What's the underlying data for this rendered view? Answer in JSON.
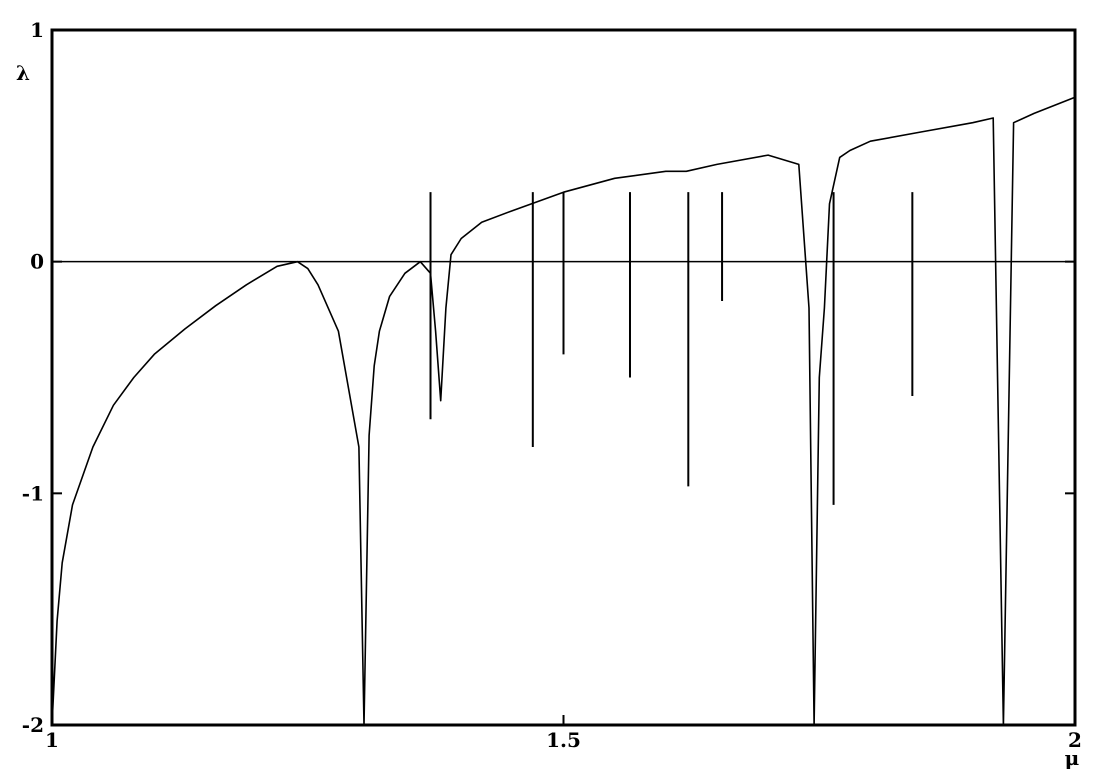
{
  "chart_data": {
    "type": "line",
    "title": "",
    "xlabel": "μ",
    "ylabel": "λ",
    "xlim": [
      1,
      2
    ],
    "ylim": [
      -2,
      1
    ],
    "x_ticks": [
      {
        "value": 1,
        "label": "1"
      },
      {
        "value": 1.5,
        "label": "1.5"
      },
      {
        "value": 2,
        "label": "2"
      }
    ],
    "y_ticks": [
      {
        "value": 1,
        "label": "1"
      },
      {
        "value": 0,
        "label": "0"
      },
      {
        "value": -1,
        "label": "-1"
      },
      {
        "value": -2,
        "label": "-2"
      }
    ],
    "reference_lines": [
      {
        "axis": "y",
        "value": 0
      }
    ],
    "grid": false,
    "legend": "none",
    "colors": {
      "line": "#000000",
      "background": "#ffffff"
    },
    "series": [
      {
        "values_description_free": true,
        "x": [
          1.0,
          1.005,
          1.01,
          1.02,
          1.04,
          1.06,
          1.08,
          1.1,
          1.13,
          1.16,
          1.19,
          1.22,
          1.24,
          1.25,
          1.26,
          1.28,
          1.3,
          1.305,
          1.31,
          1.315,
          1.32,
          1.33,
          1.345,
          1.36,
          1.37,
          1.375,
          1.38,
          1.385,
          1.39,
          1.4,
          1.42,
          1.45,
          1.5,
          1.55,
          1.6,
          1.62,
          1.65,
          1.7,
          1.73,
          1.74,
          1.745,
          1.75,
          1.755,
          1.76,
          1.77,
          1.78,
          1.8,
          1.85,
          1.9,
          1.92,
          1.93,
          1.94,
          1.96,
          2.0
        ],
        "y": [
          -2.0,
          -1.55,
          -1.3,
          -1.05,
          -0.8,
          -0.62,
          -0.5,
          -0.4,
          -0.29,
          -0.19,
          -0.1,
          -0.02,
          0.0,
          -0.03,
          -0.1,
          -0.3,
          -0.8,
          -2.0,
          -0.75,
          -0.45,
          -0.3,
          -0.15,
          -0.05,
          0.0,
          -0.05,
          -0.3,
          -0.6,
          -0.2,
          0.03,
          0.1,
          0.17,
          0.22,
          0.3,
          0.36,
          0.39,
          0.39,
          0.42,
          0.46,
          0.42,
          -0.2,
          -2.0,
          -0.5,
          -0.2,
          0.25,
          0.45,
          0.48,
          0.52,
          0.56,
          0.6,
          0.62,
          -2.0,
          0.6,
          0.64,
          0.71
        ]
      }
    ],
    "dips": [
      {
        "x": 1.37,
        "y": -0.68
      },
      {
        "x": 1.47,
        "y": -0.8
      },
      {
        "x": 1.622,
        "y": -0.97
      },
      {
        "x": 1.764,
        "y": -1.05
      },
      {
        "x": 1.841,
        "y": -0.58
      },
      {
        "x": 1.5,
        "y": -0.4
      },
      {
        "x": 1.565,
        "y": -0.5
      },
      {
        "x": 1.655,
        "y": -0.17
      }
    ]
  }
}
